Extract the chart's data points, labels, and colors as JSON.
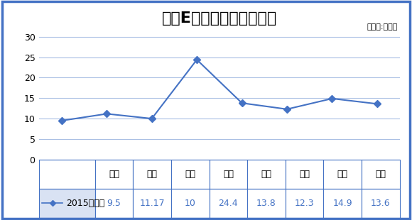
{
  "title": "奔驰E级各地区优惠对比图",
  "unit_label": "（单位:万元）",
  "categories": [
    "北京",
    "上海",
    "厦门",
    "广州",
    "深圳",
    "佛山",
    "东莞",
    "成都"
  ],
  "values": [
    9.5,
    11.17,
    10,
    24.4,
    13.8,
    12.3,
    14.9,
    13.6
  ],
  "legend_label": "2015款优惠",
  "line_color": "#4472C4",
  "marker_style": "D",
  "marker_size": 5,
  "ylim": [
    0,
    32
  ],
  "yticks": [
    0,
    5,
    10,
    15,
    20,
    25,
    30
  ],
  "grid_color": "#4472C4",
  "grid_alpha": 0.45,
  "background_color": "#FFFFFF",
  "border_color": "#4472C4",
  "title_fontsize": 16,
  "tick_fontsize": 9,
  "value_fontsize": 9,
  "legend_fontsize": 9,
  "table_values": [
    "9.5",
    "11.17",
    "10",
    "24.4",
    "13.8",
    "12.3",
    "14.9",
    "13.6"
  ],
  "value_color": "#4472C4"
}
